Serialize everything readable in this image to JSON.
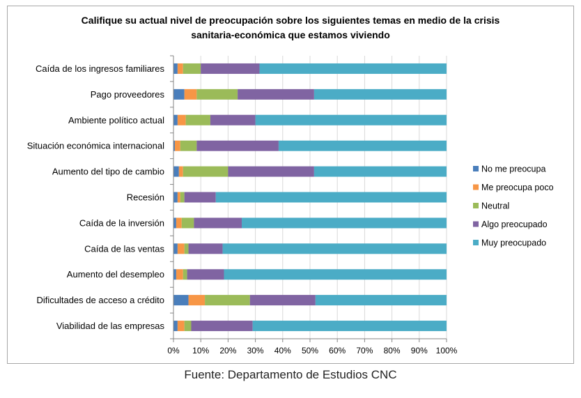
{
  "chart_data": {
    "type": "bar",
    "orientation": "horizontal",
    "stacked": "percent",
    "title_lines": [
      "Califique su actual nivel de preocupación sobre los siguientes temas en medio de la crisis",
      "sanitaria-económica que estamos viviendo"
    ],
    "categories": [
      "Caída de los ingresos familiares",
      "Pago proveedores",
      "Ambiente político actual",
      "Situación económica internacional",
      "Aumento del tipo de cambio",
      "Recesión",
      "Caída de la inversión",
      "Caída de las ventas",
      "Aumento del desempleo",
      "Dificultades de acceso a crédito",
      "Viabilidad de las empresas"
    ],
    "series": [
      {
        "name": "No me preocupa",
        "color": "#4a7ebb",
        "values": [
          1.5,
          4,
          1.5,
          0.5,
          2,
          1.5,
          1,
          1.5,
          1,
          5.5,
          1.5
        ]
      },
      {
        "name": "Me preocupa poco",
        "color": "#f79646",
        "values": [
          2,
          4.5,
          3,
          2,
          1.5,
          1,
          2,
          2.5,
          2.5,
          6,
          2.5
        ]
      },
      {
        "name": "Neutral",
        "color": "#9bbb59",
        "values": [
          6.5,
          15,
          9,
          6,
          16.5,
          1.5,
          4.5,
          1.5,
          1.5,
          16.5,
          2.5
        ]
      },
      {
        "name": "Algo preocupado",
        "color": "#8064a2",
        "values": [
          21.5,
          28,
          16.5,
          30,
          31.5,
          11.5,
          17.5,
          12.5,
          13.5,
          24,
          22.5
        ]
      },
      {
        "name": "Muy preocupado",
        "color": "#4bacc6",
        "values": [
          68.5,
          48.5,
          70,
          61.5,
          48.5,
          84.5,
          75,
          82,
          81.5,
          48,
          71
        ]
      }
    ],
    "x_ticks": [
      "0%",
      "10%",
      "20%",
      "30%",
      "40%",
      "50%",
      "60%",
      "70%",
      "80%",
      "90%",
      "100%"
    ],
    "xlim": [
      0,
      100
    ],
    "grid": "vertical",
    "legend_position": "right"
  },
  "source_text": "Fuente: Departamento de Estudios CNC"
}
